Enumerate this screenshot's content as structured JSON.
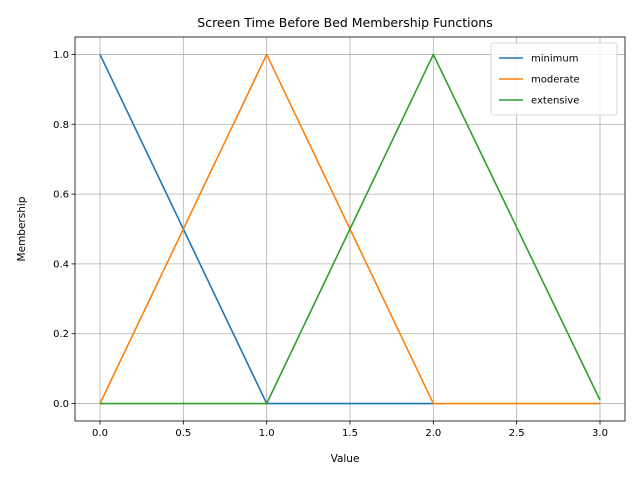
{
  "chart_data": {
    "type": "line",
    "title": "Screen Time Before Bed Membership Functions",
    "xlabel": "Value",
    "ylabel": "Membership",
    "xlim": [
      -0.15,
      3.15
    ],
    "ylim": [
      -0.05,
      1.05
    ],
    "xticks": [
      0.0,
      0.5,
      1.0,
      1.5,
      2.0,
      2.5,
      3.0
    ],
    "xtick_labels": [
      "0.0",
      "0.5",
      "1.0",
      "1.5",
      "2.0",
      "2.5",
      "3.0"
    ],
    "yticks": [
      0.0,
      0.2,
      0.4,
      0.6,
      0.8,
      1.0
    ],
    "ytick_labels": [
      "0.0",
      "0.2",
      "0.4",
      "0.6",
      "0.8",
      "1.0"
    ],
    "grid": true,
    "legend_position": "top-right",
    "series": [
      {
        "name": "minimum",
        "color": "#1f77b4",
        "x": [
          0.0,
          1.0,
          2.0
        ],
        "y": [
          1.0,
          0.0,
          0.0
        ]
      },
      {
        "name": "moderate",
        "color": "#ff7f0e",
        "x": [
          0.0,
          1.0,
          2.0,
          3.0
        ],
        "y": [
          0.0,
          1.0,
          0.0,
          0.0
        ]
      },
      {
        "name": "extensive",
        "color": "#2ca02c",
        "x": [
          0.0,
          1.0,
          2.0,
          3.0
        ],
        "y": [
          0.0,
          0.0,
          1.0,
          0.01
        ]
      }
    ]
  }
}
